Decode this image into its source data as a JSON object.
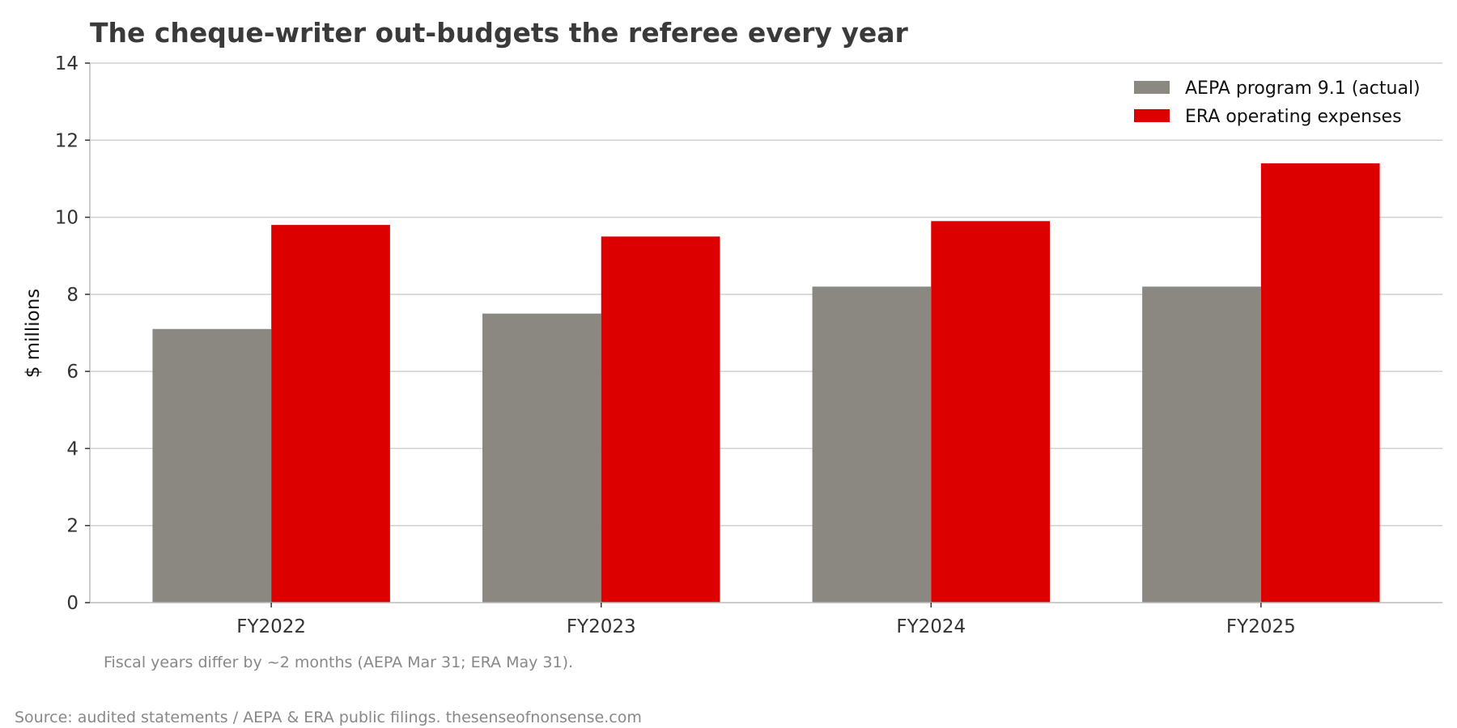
{
  "chart_data": {
    "type": "bar",
    "title": "The cheque-writer out-budgets the referee every year",
    "xlabel": "",
    "ylabel": "$ millions",
    "categories": [
      "FY2022",
      "FY2023",
      "FY2024",
      "FY2025"
    ],
    "series": [
      {
        "name": "AEPA program 9.1 (actual)",
        "color": "#8b8882",
        "values": [
          7.1,
          7.5,
          8.2,
          8.2
        ]
      },
      {
        "name": "ERA operating expenses",
        "color": "#dd0000",
        "values": [
          9.8,
          9.5,
          9.9,
          11.4
        ]
      }
    ],
    "ylim": [
      0,
      14
    ],
    "yticks": [
      0,
      2,
      4,
      6,
      8,
      10,
      12,
      14
    ],
    "grid": true,
    "legend_position": "top-right",
    "note": "Fiscal years differ by ~2 months (AEPA Mar 31; ERA May 31).",
    "source": "Source: audited statements / AEPA & ERA public filings. thesenseofnonsense.com"
  }
}
